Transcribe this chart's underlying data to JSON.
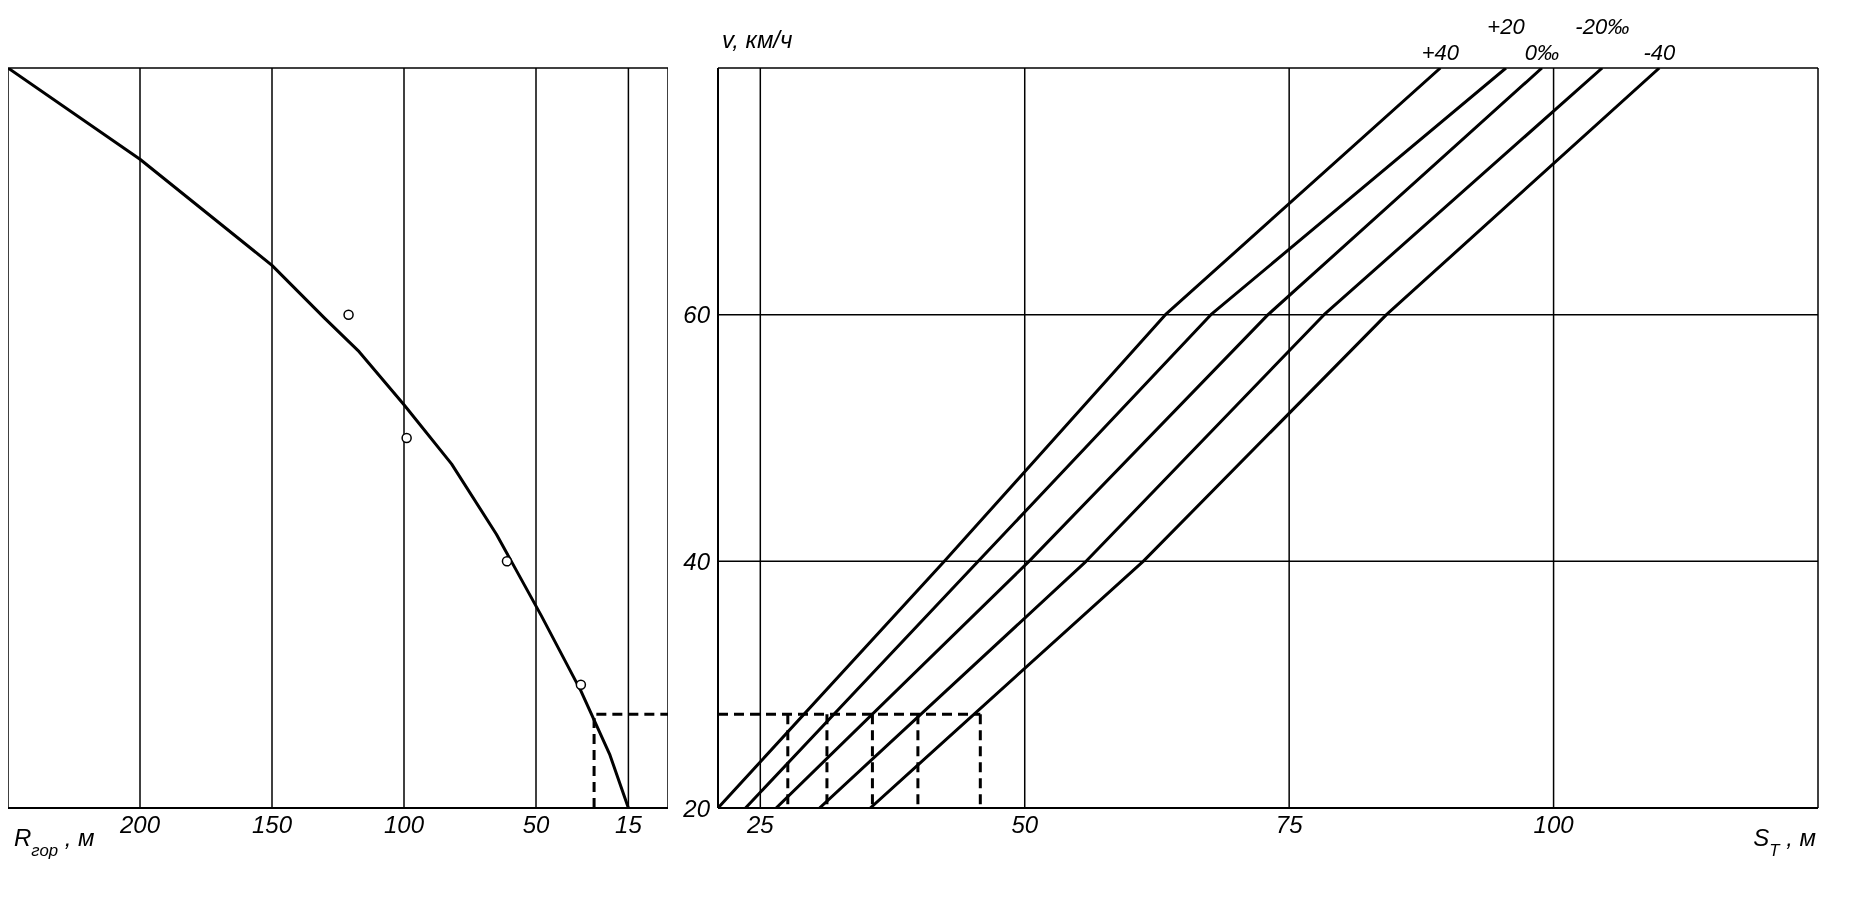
{
  "chart_data": [
    {
      "type": "line",
      "xlabel": "R$_{гор}$, м",
      "xlim": [
        250,
        0
      ],
      "xticks": [
        200,
        150,
        100,
        50,
        15
      ],
      "ylim": [
        20,
        80
      ],
      "yticks": [
        20,
        40,
        60
      ],
      "tick_labels": "x",
      "grid": true,
      "marker": "none",
      "series": [
        {
          "type": "line",
          "color": "#000000",
          "x": [
            250,
            200,
            150,
            130,
            117,
            100,
            82,
            65,
            48,
            33,
            22,
            15
          ],
          "values": [
            80,
            72.6,
            64,
            59.7,
            57,
            52.7,
            47.9,
            42.2,
            35.6,
            29.5,
            24.3,
            20
          ]
        },
        {
          "type": "scatter",
          "marker": "circle",
          "color": "#000000",
          "x": [
            121,
            99,
            61,
            33
          ],
          "values": [
            60,
            50,
            40,
            30
          ]
        },
        {
          "type": "line",
          "line_style": "dashed",
          "color": "#000000",
          "x": [
            28,
            28,
            0
          ],
          "values": [
            20,
            27.6,
            27.6
          ]
        }
      ]
    },
    {
      "type": "line",
      "ylabel": "v, км/ч",
      "xlabel": "S$_{T}$, м",
      "xlim": [
        21,
        125
      ],
      "xticks": [
        25,
        50,
        75,
        100
      ],
      "ylim": [
        20,
        80
      ],
      "yticks": [
        20,
        40,
        60
      ],
      "grid": true,
      "marker": "none",
      "series": [
        {
          "name": "+40",
          "color": "#000000",
          "x": [
            21,
            42.4,
            63.3,
            89.3
          ],
          "values": [
            20,
            40,
            60,
            80
          ]
        },
        {
          "name": "+20",
          "color": "#000000",
          "x": [
            23.6,
            45.6,
            67.6,
            95.5
          ],
          "values": [
            20,
            40,
            60,
            80
          ]
        },
        {
          "name": "0‰",
          "color": "#000000",
          "x": [
            26.5,
            50.4,
            73,
            98.9
          ],
          "values": [
            20,
            40,
            60,
            80
          ]
        },
        {
          "name": "-20‰",
          "color": "#000000",
          "x": [
            30.6,
            55.8,
            78.3,
            104.6
          ],
          "values": [
            20,
            40,
            60,
            80
          ]
        },
        {
          "name": "-40",
          "color": "#000000",
          "x": [
            35.4,
            61.2,
            84.2,
            110
          ],
          "values": [
            20,
            40,
            60,
            80
          ]
        },
        {
          "type": "line",
          "line_style": "dashed",
          "color": "#000000",
          "x": [
            21,
            45.8
          ],
          "values": [
            27.6,
            27.6
          ]
        },
        {
          "type": "line",
          "line_style": "dashed",
          "color": "#000000",
          "x": [
            27.6,
            27.6
          ],
          "values": [
            27.6,
            20
          ]
        },
        {
          "type": "line",
          "line_style": "dashed",
          "color": "#000000",
          "x": [
            31.3,
            31.3
          ],
          "values": [
            27.6,
            20
          ]
        },
        {
          "type": "line",
          "line_style": "dashed",
          "color": "#000000",
          "x": [
            35.6,
            35.6
          ],
          "values": [
            27.6,
            20
          ]
        },
        {
          "type": "line",
          "line_style": "dashed",
          "color": "#000000",
          "x": [
            39.9,
            39.9
          ],
          "values": [
            27.6,
            20
          ]
        },
        {
          "type": "line",
          "line_style": "dashed",
          "color": "#000000",
          "x": [
            45.8,
            45.8
          ],
          "values": [
            27.6,
            20
          ]
        }
      ]
    }
  ]
}
